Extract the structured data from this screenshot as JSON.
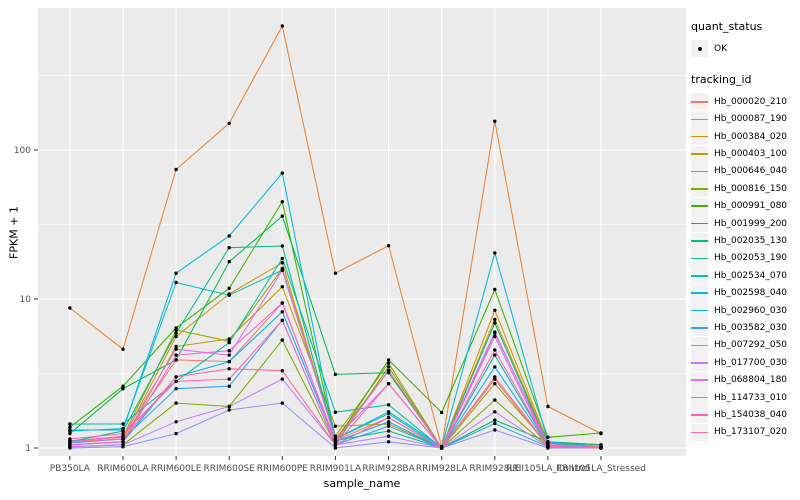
{
  "legend": {
    "quant_status_title": "quant_status",
    "ok_label": "OK",
    "tracking_id_title": "tracking_id"
  },
  "chart_data": {
    "type": "line",
    "title": "",
    "xlabel": "sample_name",
    "ylabel": "FPKM + 1",
    "yscale": "log10",
    "ylim": [
      0.88,
      900
    ],
    "legend_position": "right",
    "panel_bg": "#EBEBEB",
    "grid_color": "#FFFFFF",
    "axis_text_color": "#4D4D4D",
    "tick_color": "#333333",
    "point_color": "#000000",
    "quant_status_value": "OK",
    "y_ticks": [
      {
        "label": "1",
        "value": 1
      },
      {
        "label": "10",
        "value": 10
      },
      {
        "label": "100",
        "value": 100
      }
    ],
    "y_minor": [
      3.1623,
      31.623,
      316.23
    ],
    "categories": [
      "PB350LA",
      "RRIM600LA",
      "RRIM600LE",
      "RRIM600SE",
      "RRIM600PE",
      "RRIM901LA",
      "RRIM928BA",
      "RRIM928LA",
      "RRIM928LE",
      "RRII105LA_Control",
      "RRII105LA_Stressed"
    ],
    "series": [
      {
        "name": "Hb_000020_210",
        "color": "#F8766D",
        "values": [
          1.12,
          1.18,
          3.9,
          3.8,
          9.4,
          1.12,
          1.6,
          1.0,
          3.0,
          1.04,
          1.0
        ]
      },
      {
        "name": "Hb_000087_190",
        "color": "#EA8331",
        "values": [
          8.7,
          4.6,
          74,
          151,
          680,
          14.9,
          22.8,
          1.02,
          156,
          1.9,
          1.25
        ]
      },
      {
        "name": "Hb_000384_020",
        "color": "#D89000",
        "values": [
          1.1,
          1.15,
          5.6,
          10.8,
          17.5,
          1.15,
          3.3,
          1.0,
          8.4,
          1.1,
          1.05
        ]
      },
      {
        "name": "Hb_000403_100",
        "color": "#C09B00",
        "values": [
          1.05,
          1.1,
          4.8,
          5.4,
          12.1,
          1.4,
          1.45,
          1.0,
          7.3,
          1.08,
          1.02
        ]
      },
      {
        "name": "Hb_000646_040",
        "color": "#A3A500",
        "values": [
          1.1,
          1.2,
          6.2,
          5.2,
          16,
          1.2,
          3.7,
          1.0,
          2.7,
          1.05,
          1.0
        ]
      },
      {
        "name": "Hb_000816_150",
        "color": "#7CAE00",
        "values": [
          1.02,
          1.05,
          2.0,
          1.9,
          5.3,
          1.05,
          3.5,
          1.0,
          2.1,
          1.02,
          1.0
        ]
      },
      {
        "name": "Hb_000991_080",
        "color": "#39B600",
        "values": [
          1.38,
          2.6,
          6.4,
          11.8,
          45,
          1.1,
          3.9,
          1.73,
          11.6,
          1.18,
          1.26
        ]
      },
      {
        "name": "Hb_001999_200",
        "color": "#00BB4E",
        "values": [
          1.25,
          2.5,
          3.9,
          17.8,
          36,
          3.12,
          3.2,
          1.0,
          1.54,
          1.1,
          1.05
        ]
      },
      {
        "name": "Hb_002035_130",
        "color": "#00C087",
        "values": [
          1.1,
          1.3,
          5.9,
          22.1,
          22.7,
          1.12,
          1.3,
          1.0,
          6.9,
          1.05,
          1.0
        ]
      },
      {
        "name": "Hb_002053_190",
        "color": "#00C1A3",
        "values": [
          1.45,
          1.45,
          2.8,
          5.1,
          18.7,
          1.74,
          1.95,
          1.0,
          4.2,
          1.05,
          1.0
        ]
      },
      {
        "name": "Hb_002534_070",
        "color": "#00BFC4",
        "values": [
          1.3,
          1.35,
          12.9,
          10.6,
          15.6,
          1.15,
          1.7,
          1.0,
          5.9,
          1.08,
          1.0
        ]
      },
      {
        "name": "Hb_002598_040",
        "color": "#00BAE0",
        "values": [
          1.32,
          1.32,
          14.9,
          26.5,
          70,
          1.15,
          1.75,
          1.02,
          20.4,
          1.1,
          1.02
        ]
      },
      {
        "name": "Hb_002960_030",
        "color": "#00B0F6",
        "values": [
          1.05,
          1.1,
          3.0,
          3.8,
          8.2,
          1.1,
          1.5,
          1.0,
          3.5,
          1.05,
          1.0
        ]
      },
      {
        "name": "Hb_003582_030",
        "color": "#35A2FF",
        "values": [
          1.08,
          1.15,
          2.5,
          2.6,
          7.2,
          1.05,
          1.4,
          1.0,
          1.46,
          1.02,
          1.0
        ]
      },
      {
        "name": "Hb_007292_050",
        "color": "#9590FF",
        "values": [
          1.0,
          1.02,
          1.25,
          1.8,
          2.0,
          1.0,
          1.1,
          1.0,
          1.32,
          1.0,
          1.0
        ]
      },
      {
        "name": "Hb_017700_030",
        "color": "#C77CFF",
        "values": [
          1.02,
          1.05,
          1.5,
          1.9,
          2.9,
          1.05,
          1.2,
          1.0,
          1.75,
          1.02,
          1.0
        ]
      },
      {
        "name": "Hb_068804_180",
        "color": "#E76BF3",
        "values": [
          1.1,
          1.2,
          4.6,
          4.2,
          15.6,
          1.15,
          2.7,
          1.0,
          6.0,
          1.05,
          1.02
        ]
      },
      {
        "name": "Hb_114733_010",
        "color": "#FA62DB",
        "values": [
          1.05,
          1.1,
          4.2,
          4.5,
          9.4,
          1.1,
          3.3,
          1.0,
          5.6,
          1.03,
          1.0
        ]
      },
      {
        "name": "Hb_154038_040",
        "color": "#FF62BC",
        "values": [
          1.15,
          1.25,
          2.8,
          2.9,
          7.2,
          1.05,
          2.7,
          1.0,
          4.55,
          1.05,
          1.02
        ]
      },
      {
        "name": "Hb_173107_020",
        "color": "#FF6A98",
        "values": [
          1.1,
          1.15,
          3.0,
          3.4,
          3.3,
          1.05,
          1.6,
          1.0,
          2.9,
          1.02,
          1.0
        ]
      }
    ]
  }
}
